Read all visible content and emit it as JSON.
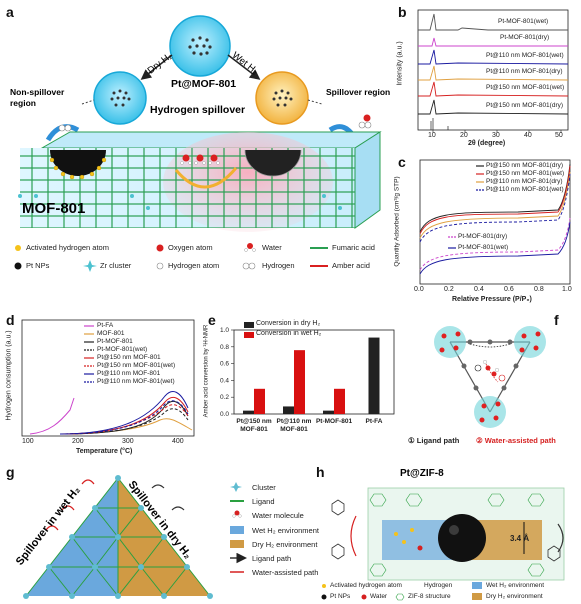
{
  "panel_a": {
    "label": "a",
    "center_title": "Pt@MOF-801",
    "subtitle": "Hydrogen spillover",
    "left_arrow": "Dry H₂",
    "right_arrow": "Wet H₂",
    "non_spill": "Non-spillover region",
    "spill": "Spillover region",
    "mof_label": "MOF-801",
    "legend": [
      {
        "label": "Activated hydrogen atom",
        "icon": "yellow-dot"
      },
      {
        "label": "Oxygen atom",
        "icon": "red-dot"
      },
      {
        "label": "Water",
        "icon": "water-molecule"
      },
      {
        "label": "Fumaric acid",
        "icon": "green-line"
      },
      {
        "label": "Pt NPs",
        "icon": "black-dot"
      },
      {
        "label": "Zr cluster",
        "icon": "cyan-star"
      },
      {
        "label": "Hydrogen atom",
        "icon": "white-dot"
      },
      {
        "label": "Hydrogen",
        "icon": "h2-molecule"
      },
      {
        "label": "Amber acid",
        "icon": "red-line"
      }
    ]
  },
  "panel_b": {
    "label": "b",
    "ylabel": "Intensity (a.u.)",
    "xlabel": "2θ (degree)",
    "xticks": [
      "10",
      "20",
      "30",
      "40",
      "50"
    ],
    "traces": [
      {
        "name": "Pt-MOF-801(wet)",
        "color": "#555555"
      },
      {
        "name": "Pt-MOF-801(dry)",
        "color": "#cc44cc"
      },
      {
        "name": "Pt@110 nm MOF-801(wet)",
        "color": "#1a1aa0"
      },
      {
        "name": "Pt@110 nm MOF-801(dry)",
        "color": "#e0a040"
      },
      {
        "name": "Pt@150 nm MOF-801(wet)",
        "color": "#d62020"
      },
      {
        "name": "Pt@150 nm MOF-801(dry)",
        "color": "#222222"
      }
    ]
  },
  "panel_c": {
    "label": "c",
    "ylabel": "Quantity Adsorbed (cm³/g STP)",
    "xlabel": "Relative Pressure (P/P₀)",
    "xticks": [
      "0.0",
      "0.2",
      "0.4",
      "0.6",
      "0.8",
      "1.0"
    ],
    "legend": [
      "Pt@150 nm MOF-801(dry)",
      "Pt@150 nm MOF-801(wet)",
      "Pt@110 nm MOF-801(dry)",
      "Pt@110 nm MOF-801(wet)",
      "Pt-MOF-801(dry)",
      "Pt-MOF-801(wet)"
    ]
  },
  "panel_d": {
    "label": "d",
    "ylabel": "Hydrogen consumption (a.u.)",
    "xlabel": "Temperature (°C)",
    "xticks": [
      "100",
      "200",
      "300",
      "400"
    ],
    "legend": [
      {
        "name": "Pt-FA",
        "color": "#cc44cc",
        "dash": false
      },
      {
        "name": "MOF-801",
        "color": "#e0a040",
        "dash": false
      },
      {
        "name": "Pt-MOF-801",
        "color": "#222222",
        "dash": false
      },
      {
        "name": "Pt-MOF-801(wet)",
        "color": "#222222",
        "dash": true
      },
      {
        "name": "Pt@150 nm MOF-801",
        "color": "#d62020",
        "dash": false
      },
      {
        "name": "Pt@150 nm MOF-801(wet)",
        "color": "#d62020",
        "dash": true
      },
      {
        "name": "Pt@110 nm MOF-801",
        "color": "#1a1aa0",
        "dash": false
      },
      {
        "name": "Pt@110 nm MOF-801(wet)",
        "color": "#1a1aa0",
        "dash": true
      }
    ]
  },
  "panel_f": {
    "label": "f",
    "ligand": "① Ligand path",
    "water": "② Water-assisted path"
  },
  "panel_g": {
    "label": "g",
    "left_text": "Spillover in wet H₂",
    "right_text": "Spillover in dry H₂",
    "legend": [
      "Cluster",
      "Ligand",
      "Water molecule",
      "Wet H₂ environment",
      "Dry H₂ environment",
      "Ligand path",
      "Water-assisted path"
    ]
  },
  "panel_h": {
    "label": "h",
    "title": "Pt@ZIF-8",
    "dim": "3.4 Å",
    "legend": [
      "Activated hydrogen atom",
      "Hydrogen",
      "Pt NPs",
      "Water",
      "ZIF-8 structure",
      "Wet H₂ environment",
      "Dry H₂ environment"
    ]
  },
  "chart_data": [
    {
      "type": "bar",
      "title": "",
      "ylabel": "Amber acid conversion by ¹H-NMR",
      "categories": [
        "Pt@150 nm MOF-801",
        "Pt@110 nm MOF-801",
        "Pt-MOF-801",
        "Pt-FA"
      ],
      "series": [
        {
          "name": "Conversion in dry H₂",
          "color": "#222222",
          "values": [
            0.04,
            0.09,
            0.04,
            0.91
          ]
        },
        {
          "name": "Conversion in wet H₂",
          "color": "#d81010",
          "values": [
            0.3,
            0.76,
            0.3,
            null
          ]
        }
      ],
      "ylim": [
        0,
        1.0
      ],
      "yticks": [
        "0.0",
        "0.2",
        "0.4",
        "0.6",
        "0.8",
        "1.0"
      ],
      "grid": false,
      "legend": "top-left",
      "panel_label": "e"
    }
  ]
}
